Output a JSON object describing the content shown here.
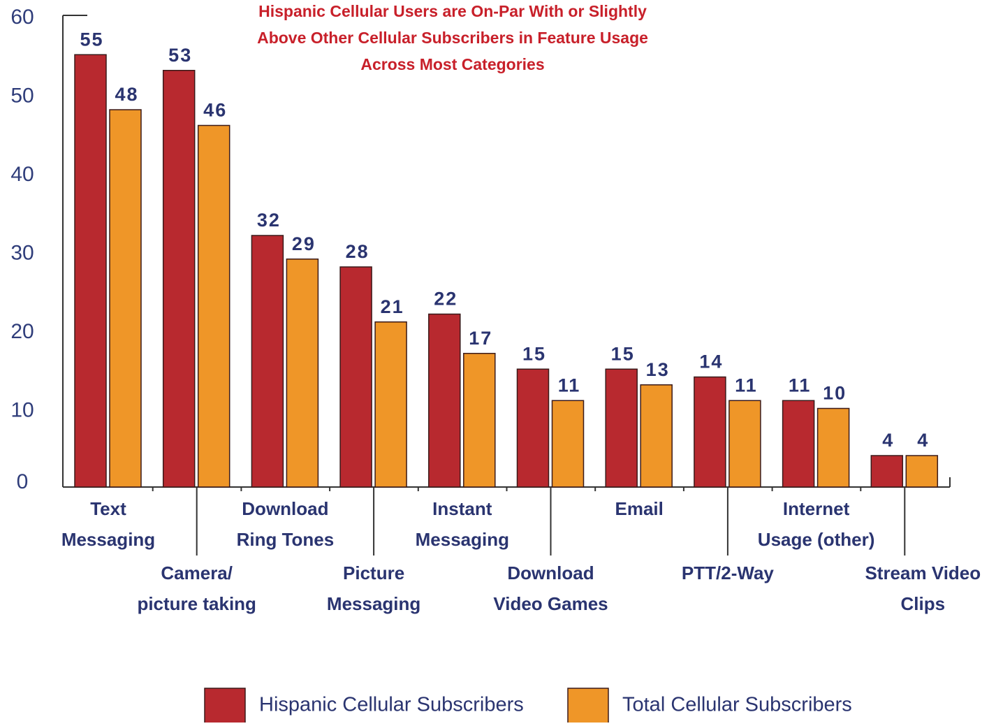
{
  "chart_data": {
    "type": "bar",
    "title": "Hispanic Cellular Users are On-Par With or Slightly\nAbove Other Cellular Subscribers in Feature Usage\nAcross Most Categories",
    "categories": [
      "Text\nMessaging",
      "Camera/\npicture taking",
      "Download\nRing Tones",
      "Picture\nMessaging",
      "Instant\nMessaging",
      "Download\nVideo Games",
      "Email",
      "PTT/2-Way",
      "Internet\nUsage (other)",
      "Stream Video\nClips"
    ],
    "series": [
      {
        "name": "Hispanic Cellular Subscribers",
        "color": "#b8292f",
        "values": [
          55,
          53,
          32,
          28,
          22,
          15,
          15,
          14,
          11,
          4
        ]
      },
      {
        "name": "Total Cellular Subscribers",
        "color": "#ef9628",
        "values": [
          48,
          46,
          29,
          21,
          17,
          11,
          13,
          11,
          10,
          4
        ]
      }
    ],
    "ylim": [
      0,
      60
    ],
    "yticks": [
      0,
      10,
      20,
      30,
      40,
      50,
      60
    ],
    "grid": false
  }
}
